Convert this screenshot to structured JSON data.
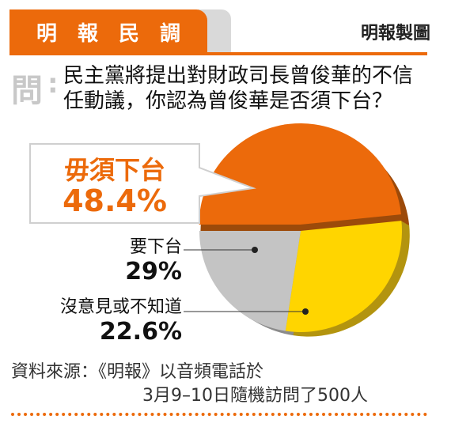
{
  "header": {
    "title": "明　報　民　調",
    "credit": "明報製圖"
  },
  "question": {
    "mark": "問",
    "colon": ":",
    "text": "民主黨將提出對財政司長曾俊華的不信任動議，你認為曾俊華是否須下台？"
  },
  "colors": {
    "accent": "#ec6a0b",
    "slice_1": "#ec6a0b",
    "slice_2": "#ffd500",
    "slice_3": "#c4c4c4"
  },
  "chart_data": {
    "type": "pie",
    "title": "",
    "slices": [
      {
        "label": "毋須下台",
        "value": 48.4,
        "display": "48.4%"
      },
      {
        "label": "要下台",
        "value": 29,
        "display": "29%"
      },
      {
        "label": "沒意見或不知道",
        "value": 22.6,
        "display": "22.6%"
      }
    ]
  },
  "source": {
    "line1": "資料來源：《明報》以音頻電話於",
    "line2": "3月9–10日隨機訪問了500人"
  }
}
